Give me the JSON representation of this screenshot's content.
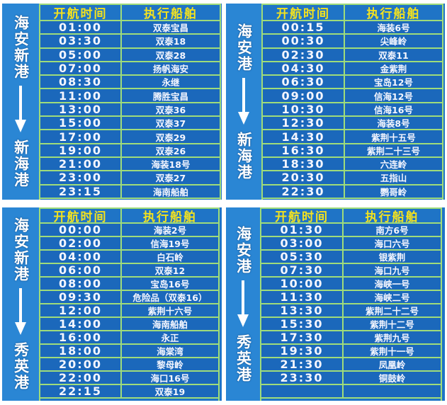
{
  "colors": {
    "board": "#1f74c6",
    "cell": "#1b68bb",
    "grid_line": "#9fdc7a",
    "header_text": "#f3e21f",
    "text": "#ffffff"
  },
  "panels": [
    {
      "route": {
        "from": "海安新港",
        "to": "新海港",
        "arrow": "down-arrow-icon"
      },
      "header": {
        "time": "开航时间",
        "ship": "执行船舶"
      },
      "rows": [
        {
          "time": "01:00",
          "ship": "双泰宝昌"
        },
        {
          "time": "03:30",
          "ship": "双泰18"
        },
        {
          "time": "05:00",
          "ship": "双泰28"
        },
        {
          "time": "07:00",
          "ship": "扬帆海安"
        },
        {
          "time": "08:30",
          "ship": "永继"
        },
        {
          "time": "11:00",
          "ship": "腾胜宝昌"
        },
        {
          "time": "13:00",
          "ship": "双泰36"
        },
        {
          "time": "15:00",
          "ship": "双泰37"
        },
        {
          "time": "17:00",
          "ship": "双泰29"
        },
        {
          "time": "19:00",
          "ship": "双泰26"
        },
        {
          "time": "21:00",
          "ship": "海装18号"
        },
        {
          "time": "23:00",
          "ship": "双泰27"
        },
        {
          "time": "23:15",
          "ship": "海南船舶"
        }
      ]
    },
    {
      "route": {
        "from": "海安港",
        "to": "新海港",
        "arrow": "down-arrow-icon"
      },
      "header": {
        "time": "开航时间",
        "ship": "执行船舶"
      },
      "rows": [
        {
          "time": "00:15",
          "ship": "海装6号"
        },
        {
          "time": "00:30",
          "ship": "尖峰岭"
        },
        {
          "time": "02:30",
          "ship": "双泰11"
        },
        {
          "time": "04:30",
          "ship": "金紫荆"
        },
        {
          "time": "06:30",
          "ship": "宝岛12号"
        },
        {
          "time": "09:00",
          "ship": "信海12号"
        },
        {
          "time": "10:30",
          "ship": "信海16号"
        },
        {
          "time": "12:30",
          "ship": "海装8号"
        },
        {
          "time": "14:30",
          "ship": "紫荆十五号"
        },
        {
          "time": "16:30",
          "ship": "紫荆二十三号"
        },
        {
          "time": "18:30",
          "ship": "六连岭"
        },
        {
          "time": "20:30",
          "ship": "五指山"
        },
        {
          "time": "22:30",
          "ship": "鹦哥岭"
        }
      ]
    },
    {
      "route": {
        "from": "海安新港",
        "to": "秀英港",
        "arrow": "down-arrow-icon"
      },
      "header": {
        "time": "开航时间",
        "ship": "执行船舶"
      },
      "rows": [
        {
          "time": "00:00",
          "ship": "海装2号"
        },
        {
          "time": "02:00",
          "ship": "信海19号"
        },
        {
          "time": "04:00",
          "ship": "白石岭"
        },
        {
          "time": "06:00",
          "ship": "双泰12"
        },
        {
          "time": "08:00",
          "ship": "宝岛16号"
        },
        {
          "time": "09:30",
          "ship": "危险品（双泰16）"
        },
        {
          "time": "12:00",
          "ship": "紫荆十六号"
        },
        {
          "time": "14:00",
          "ship": "海南船舶"
        },
        {
          "time": "16:00",
          "ship": "永正"
        },
        {
          "time": "18:00",
          "ship": "海棠湾"
        },
        {
          "time": "20:00",
          "ship": "黎母岭"
        },
        {
          "time": "22:00",
          "ship": "海口16号"
        },
        {
          "time": "22:15",
          "ship": "双泰19"
        }
      ]
    },
    {
      "route": {
        "from": "海安港",
        "to": "秀英港",
        "arrow": "down-arrow-icon"
      },
      "header": {
        "time": "开航时间",
        "ship": "执行船舶"
      },
      "rows": [
        {
          "time": "01:30",
          "ship": "南方6号"
        },
        {
          "time": "03:00",
          "ship": "海口六号"
        },
        {
          "time": "05:30",
          "ship": "银紫荆"
        },
        {
          "time": "07:30",
          "ship": "海口九号"
        },
        {
          "time": "10:00",
          "ship": "海峡一号"
        },
        {
          "time": "11:30",
          "ship": "海峡二号"
        },
        {
          "time": "13:30",
          "ship": "紫荆二十二号"
        },
        {
          "time": "15:30",
          "ship": "紫荆十二号"
        },
        {
          "time": "17:30",
          "ship": "紫荆九号"
        },
        {
          "time": "19:30",
          "ship": "紫荆十一号"
        },
        {
          "time": "21:30",
          "ship": "凤凰岭"
        },
        {
          "time": "23:30",
          "ship": "铜鼓岭"
        },
        {
          "time": "",
          "ship": ""
        }
      ]
    }
  ]
}
